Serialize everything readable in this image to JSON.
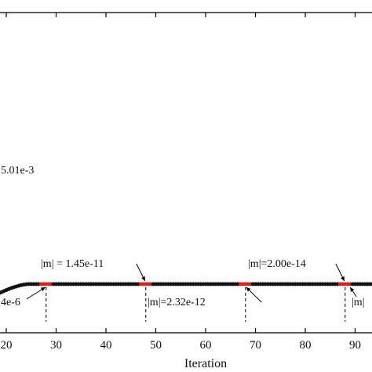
{
  "chart_data": {
    "type": "line",
    "title": "",
    "xlabel": "Iteration",
    "ylabel": "",
    "xlim": [
      18.5,
      98
    ],
    "x_ticks": [
      20,
      30,
      40,
      50,
      60,
      70,
      80,
      90
    ],
    "x_tick_labels": [
      "20",
      "30",
      "40",
      "50",
      "60",
      "70",
      "80",
      "90"
    ],
    "grid": false,
    "series": [
      {
        "color": "#111111",
        "highlight_color": "#d42020",
        "highlight_ranges": [
          [
            27,
            29
          ],
          [
            47,
            49
          ],
          [
            67,
            69
          ],
          [
            87,
            89
          ]
        ],
        "x": [
          18.5,
          19,
          19.5,
          20,
          20.5,
          21,
          21.5,
          22,
          22.5,
          23,
          23.5,
          24,
          24.5,
          25,
          25.5,
          26,
          26.5,
          27,
          27.5,
          28,
          28.5,
          29,
          29.5,
          30,
          30.5,
          31,
          31.5,
          32,
          32.5,
          33,
          33.5,
          34,
          34.5,
          35,
          35.5,
          36,
          36.5,
          37,
          37.5,
          38,
          38.5,
          39,
          39.5,
          40,
          40.5,
          41,
          41.5,
          42,
          42.5,
          43,
          43.5,
          44,
          44.5,
          45,
          45.5,
          46,
          46.5,
          47,
          47.5,
          48,
          48.5,
          49,
          49.5,
          50,
          50.5,
          51,
          51.5,
          52,
          52.5,
          53,
          53.5,
          54,
          54.5,
          55,
          55.5,
          56,
          56.5,
          57,
          57.5,
          58,
          58.5,
          59,
          59.5,
          60,
          60.5,
          61,
          61.5,
          62,
          62.5,
          63,
          63.5,
          64,
          64.5,
          65,
          65.5,
          66,
          66.5,
          67,
          67.5,
          68,
          68.5,
          69,
          69.5,
          70,
          70.5,
          71,
          71.5,
          72,
          72.5,
          73,
          73.5,
          74,
          74.5,
          75,
          75.5,
          76,
          76.5,
          77,
          77.5,
          78,
          78.5,
          79,
          79.5,
          80,
          80.5,
          81,
          81.5,
          82,
          82.5,
          83,
          83.5,
          84,
          84.5,
          85,
          85.5,
          86,
          86.5,
          87,
          87.5,
          88,
          88.5,
          89,
          89.5,
          90,
          90.5,
          91,
          91.5,
          92,
          92.5,
          93,
          93.5,
          94,
          94.5,
          95,
          95.5,
          96,
          96.5,
          97,
          97.5,
          98
        ]
      }
    ],
    "annotations": [
      {
        "text": "5.01e-3",
        "x": 18.5
      },
      {
        "text": "4e-6",
        "x": 18.5,
        "target_x": 28
      },
      {
        "text": "|m| = 1.45e-11",
        "target_x": 48
      },
      {
        "text": "|m|=2.32e-12",
        "target_x": 68
      },
      {
        "text": "|m|=2.00e-14",
        "target_x": 88
      },
      {
        "text": "|m|",
        "target_x": 89
      }
    ]
  }
}
